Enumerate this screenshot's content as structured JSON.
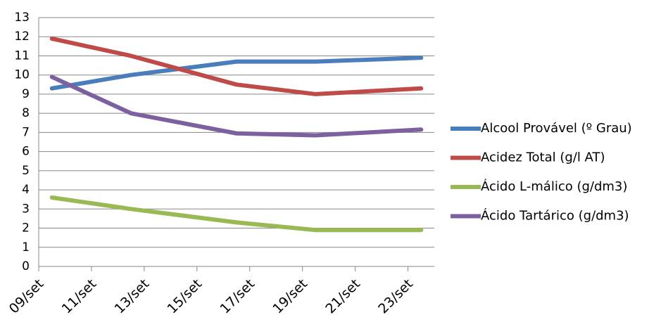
{
  "chart_data": {
    "type": "line",
    "x": [
      "09/set",
      "12/set",
      "16/set",
      "19/set",
      "23/set"
    ],
    "xlim": [
      "09/set",
      "24/set"
    ],
    "xticks": [
      "09/set",
      "11/set",
      "13/set",
      "15/set",
      "17/set",
      "19/set",
      "21/set",
      "23/set"
    ],
    "ylim": [
      0,
      13
    ],
    "yticks": [
      0,
      1,
      2,
      3,
      4,
      5,
      6,
      7,
      8,
      9,
      10,
      11,
      12,
      13
    ],
    "grid": true,
    "legend": "right",
    "series": [
      {
        "name": "Alcool Provável (º Grau)",
        "color": "#4a7ebb",
        "values": [
          9.3,
          10.0,
          10.7,
          10.7,
          10.9
        ]
      },
      {
        "name": "Acidez Total (g/l AT)",
        "color": "#be4b48",
        "values": [
          11.9,
          11.0,
          9.5,
          9.0,
          9.3
        ]
      },
      {
        "name": "Ácido L-málico (g/dm3)",
        "color": "#98b954",
        "values": [
          3.6,
          3.0,
          2.3,
          1.9,
          1.9
        ]
      },
      {
        "name": "Ácido Tartárico (g/dm3)",
        "color": "#7d60a0",
        "values": [
          9.9,
          8.0,
          6.95,
          6.85,
          7.15
        ]
      }
    ]
  }
}
